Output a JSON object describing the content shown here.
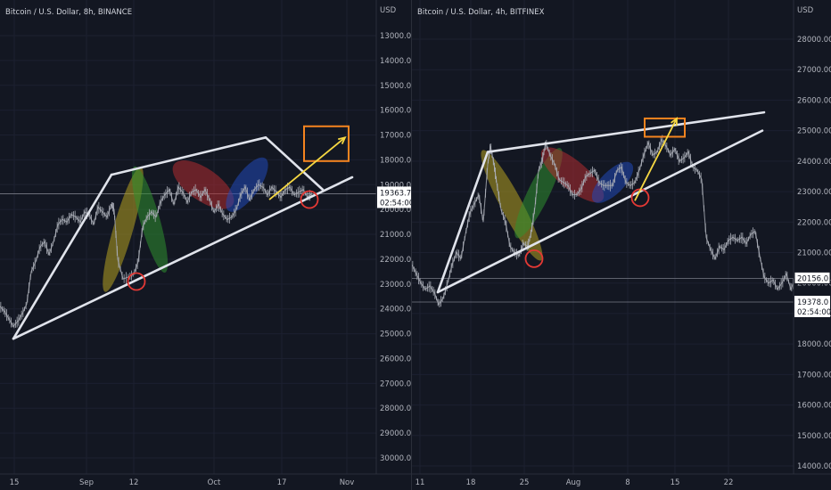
{
  "chart_data": [
    {
      "type": "candlestick",
      "title": "Bitcoin / U.S. Dollar, 8h, BINANCE",
      "currency": "USD",
      "inverted_axis": true,
      "y_ticks": [
        "13000.00",
        "14000.00",
        "15000.00",
        "16000.00",
        "17000.00",
        "18000.00",
        "19000.00",
        "20000.00",
        "21000.00",
        "22000.00",
        "23000.00",
        "24000.00",
        "25000.00",
        "26000.00",
        "27000.00",
        "28000.00",
        "29000.00",
        "30000.00"
      ],
      "ylim": [
        12000,
        31000
      ],
      "x_ticks": [
        "15",
        "Sep",
        "12",
        "Oct",
        "17",
        "Nov"
      ],
      "price_label": "19363.70",
      "countdown_label": "02:54:00",
      "price_line_value": 19363.7,
      "price_series": [
        [
          0,
          23900
        ],
        [
          5,
          24100
        ],
        [
          10,
          24400
        ],
        [
          15,
          24700
        ],
        [
          20,
          24500
        ],
        [
          25,
          24200
        ],
        [
          30,
          23800
        ],
        [
          35,
          22500
        ],
        [
          40,
          22100
        ],
        [
          45,
          21500
        ],
        [
          50,
          21300
        ],
        [
          55,
          21800
        ],
        [
          60,
          21300
        ],
        [
          65,
          20600
        ],
        [
          70,
          20400
        ],
        [
          75,
          20500
        ],
        [
          80,
          20200
        ],
        [
          85,
          20300
        ],
        [
          90,
          20500
        ],
        [
          95,
          20100
        ],
        [
          100,
          20200
        ],
        [
          105,
          20600
        ],
        [
          110,
          19900
        ],
        [
          115,
          20100
        ],
        [
          120,
          20300
        ],
        [
          125,
          19800
        ],
        [
          128,
          20000
        ],
        [
          132,
          22000
        ],
        [
          138,
          22800
        ],
        [
          145,
          22700
        ],
        [
          150,
          22600
        ],
        [
          155,
          22100
        ],
        [
          160,
          20700
        ],
        [
          165,
          20300
        ],
        [
          170,
          20100
        ],
        [
          175,
          20300
        ],
        [
          180,
          19700
        ],
        [
          185,
          19400
        ],
        [
          190,
          19200
        ],
        [
          195,
          19800
        ],
        [
          200,
          19100
        ],
        [
          205,
          19300
        ],
        [
          210,
          19700
        ],
        [
          215,
          19300
        ],
        [
          220,
          19200
        ],
        [
          225,
          19500
        ],
        [
          230,
          19200
        ],
        [
          235,
          19600
        ],
        [
          240,
          20100
        ],
        [
          245,
          19800
        ],
        [
          250,
          20200
        ],
        [
          255,
          20400
        ],
        [
          260,
          20300
        ],
        [
          265,
          20000
        ],
        [
          270,
          19400
        ],
        [
          275,
          19100
        ],
        [
          280,
          19600
        ],
        [
          285,
          19200
        ],
        [
          290,
          19000
        ],
        [
          295,
          19100
        ],
        [
          300,
          19400
        ],
        [
          305,
          19100
        ],
        [
          310,
          19300
        ],
        [
          315,
          19500
        ],
        [
          320,
          19200
        ],
        [
          325,
          19100
        ],
        [
          330,
          19400
        ],
        [
          335,
          19300
        ],
        [
          340,
          19200
        ],
        [
          345,
          19500
        ],
        [
          350,
          19360
        ]
      ],
      "pattern_lines": [
        {
          "from": [
            15,
            25200
          ],
          "to": [
            125,
            18600
          ]
        },
        {
          "from": [
            125,
            18600
          ],
          "to": [
            298,
            17100
          ]
        },
        {
          "from": [
            15,
            25200
          ],
          "to": [
            395,
            18700
          ]
        },
        {
          "from": [
            298,
            17100
          ],
          "to": [
            362,
            19200
          ]
        }
      ],
      "ellipses": [
        {
          "color": "#b5a020",
          "center": [
            138,
            20800
          ],
          "angle_deg": -74,
          "span": [
            11,
            73
          ]
        },
        {
          "color": "#2f8f2f",
          "center": [
            168,
            20400
          ],
          "angle_deg": 74,
          "span": [
            11,
            62
          ]
        },
        {
          "color": "#b02c30",
          "center": [
            228,
            19000
          ],
          "angle_deg": 35,
          "span": [
            18,
            40
          ]
        },
        {
          "color": "#2049b8",
          "center": [
            277,
            19000
          ],
          "angle_deg": -55,
          "span": [
            14,
            36
          ]
        }
      ],
      "circles": [
        {
          "color": "#e53935",
          "center": [
            153,
            22900
          ]
        },
        {
          "color": "#e53935",
          "center": [
            347,
            19600
          ]
        }
      ],
      "arrow": {
        "color": "#f5d742",
        "from": [
          302,
          19600
        ],
        "to": [
          387,
          17100
        ]
      },
      "target_box": {
        "color": "#f5841f",
        "from": [
          341,
          16650
        ],
        "to": [
          391,
          18050
        ]
      }
    },
    {
      "type": "candlestick",
      "title": "Bitcoin / U.S. Dollar, 4h, BITFINEX",
      "currency": "USD",
      "inverted_axis": false,
      "y_ticks": [
        "28000.00",
        "27000.00",
        "26000.00",
        "25000.00",
        "24000.00",
        "23000.00",
        "22000.00",
        "21000.00",
        "20000.00",
        "19000.00",
        "18000.00",
        "17000.00",
        "16000.00",
        "15000.00",
        "14000.00"
      ],
      "ylim": [
        13700,
        28950
      ],
      "x_ticks": [
        "11",
        "18",
        "25",
        "Aug",
        "8",
        "15",
        "22"
      ],
      "price_label": "20156.0",
      "price_line_value": 20156.0,
      "second_label": "19378.0",
      "countdown_label": "02:54:00",
      "second_line_value": 19378.0,
      "price_series": [
        [
          0,
          20600
        ],
        [
          5,
          20300
        ],
        [
          10,
          20000
        ],
        [
          15,
          19800
        ],
        [
          20,
          19900
        ],
        [
          25,
          19700
        ],
        [
          30,
          19300
        ],
        [
          35,
          19500
        ],
        [
          40,
          20000
        ],
        [
          45,
          20600
        ],
        [
          50,
          21000
        ],
        [
          55,
          20800
        ],
        [
          60,
          21600
        ],
        [
          65,
          22300
        ],
        [
          70,
          22600
        ],
        [
          75,
          22900
        ],
        [
          80,
          22000
        ],
        [
          85,
          23900
        ],
        [
          88,
          24500
        ],
        [
          92,
          23900
        ],
        [
          95,
          23300
        ],
        [
          100,
          22400
        ],
        [
          105,
          22000
        ],
        [
          110,
          21200
        ],
        [
          115,
          21000
        ],
        [
          120,
          20900
        ],
        [
          125,
          21300
        ],
        [
          130,
          21200
        ],
        [
          134,
          21700
        ],
        [
          138,
          22500
        ],
        [
          142,
          23700
        ],
        [
          146,
          24000
        ],
        [
          150,
          24600
        ],
        [
          155,
          24200
        ],
        [
          160,
          23900
        ],
        [
          165,
          23400
        ],
        [
          170,
          23300
        ],
        [
          175,
          23200
        ],
        [
          180,
          22900
        ],
        [
          185,
          22900
        ],
        [
          190,
          23100
        ],
        [
          195,
          23500
        ],
        [
          200,
          23600
        ],
        [
          205,
          23700
        ],
        [
          210,
          23300
        ],
        [
          215,
          23200
        ],
        [
          220,
          23200
        ],
        [
          225,
          23200
        ],
        [
          230,
          23700
        ],
        [
          235,
          23800
        ],
        [
          240,
          23300
        ],
        [
          245,
          23200
        ],
        [
          250,
          23300
        ],
        [
          255,
          23700
        ],
        [
          260,
          24200
        ],
        [
          265,
          24600
        ],
        [
          270,
          24200
        ],
        [
          275,
          24300
        ],
        [
          280,
          24700
        ],
        [
          285,
          24500
        ],
        [
          290,
          24200
        ],
        [
          295,
          24400
        ],
        [
          300,
          24000
        ],
        [
          305,
          24100
        ],
        [
          310,
          24300
        ],
        [
          315,
          23800
        ],
        [
          320,
          23700
        ],
        [
          325,
          23400
        ],
        [
          330,
          21500
        ],
        [
          335,
          21100
        ],
        [
          340,
          20800
        ],
        [
          345,
          21200
        ],
        [
          350,
          21100
        ],
        [
          355,
          21400
        ],
        [
          360,
          21500
        ],
        [
          365,
          21400
        ],
        [
          370,
          21500
        ],
        [
          375,
          21300
        ],
        [
          380,
          21600
        ],
        [
          385,
          21700
        ],
        [
          390,
          20900
        ],
        [
          395,
          20200
        ],
        [
          400,
          20000
        ],
        [
          405,
          20100
        ],
        [
          410,
          19800
        ],
        [
          415,
          20000
        ],
        [
          420,
          20300
        ],
        [
          425,
          19800
        ],
        [
          430,
          20150
        ]
      ],
      "pattern_lines": [
        {
          "from": [
            29,
            19700
          ],
          "to": [
            85,
            24300
          ]
        },
        {
          "from": [
            85,
            24300
          ],
          "to": [
            395,
            25600
          ]
        },
        {
          "from": [
            29,
            19700
          ],
          "to": [
            393,
            25000
          ]
        }
      ],
      "ellipses": [
        {
          "color": "#b5a020",
          "center": [
            112,
            22550
          ],
          "angle_deg": 62,
          "span": [
            12,
            70
          ]
        },
        {
          "color": "#2f8f2f",
          "center": [
            142,
            22950
          ],
          "angle_deg": -64,
          "span": [
            12,
            56
          ]
        },
        {
          "color": "#b02c30",
          "center": [
            180,
            23550
          ],
          "angle_deg": 40,
          "span": [
            16,
            44
          ]
        },
        {
          "color": "#2049b8",
          "center": [
            225,
            23300
          ],
          "angle_deg": -45,
          "span": [
            13,
            30
          ]
        }
      ],
      "circles": [
        {
          "color": "#e53935",
          "center": [
            137,
            20800
          ]
        },
        {
          "color": "#e53935",
          "center": [
            256,
            22800
          ]
        }
      ],
      "arrow": {
        "color": "#f5d742",
        "from": [
          250,
          22700
        ],
        "to": [
          297,
          25400
        ]
      },
      "target_box": {
        "color": "#f5841f",
        "from": [
          261,
          24800
        ],
        "to": [
          306,
          25400
        ]
      }
    }
  ]
}
